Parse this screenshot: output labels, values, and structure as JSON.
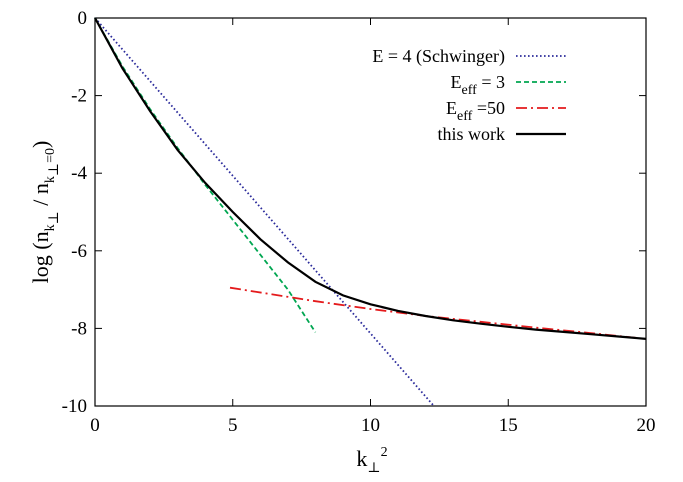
{
  "chart_data": {
    "type": "line",
    "xlabel": {
      "main": "k",
      "sub": "⊥",
      "sup": "2"
    },
    "ylabel": {
      "prefix": "log (n",
      "sub1": "k",
      "subsub1": "⊥",
      "mid": " / n",
      "sub2": "k",
      "subsub2": "⊥",
      "sub2tail": "=0",
      "suffix": ")"
    },
    "xlim": [
      0,
      20
    ],
    "ylim": [
      -10,
      0
    ],
    "xticks": [
      0,
      5,
      10,
      15,
      20
    ],
    "yticks": [
      0,
      -2,
      -4,
      -6,
      -8,
      -10
    ],
    "grid": false,
    "legend_position": "top-right",
    "series": [
      {
        "legend": {
          "main": "E = 4 (Schwinger)",
          "sub": "",
          "tail": ""
        },
        "color": "#2b2b9b",
        "style": "dotted",
        "x": [
          0,
          12.3
        ],
        "y": [
          0,
          -10.0
        ]
      },
      {
        "legend": {
          "main": "E",
          "sub": "eff",
          "tail": " = 3"
        },
        "color": "#00a651",
        "style": "dashed",
        "x": [
          0,
          1,
          2,
          3,
          4,
          5,
          6,
          7,
          8
        ],
        "y": [
          0,
          -1.25,
          -2.35,
          -3.35,
          -4.3,
          -5.2,
          -6.1,
          -7.0,
          -8.1
        ]
      },
      {
        "legend": {
          "main": "E",
          "sub": "eff",
          "tail": " =50"
        },
        "color": "#e41a1c",
        "style": "dashdot",
        "x": [
          4.9,
          8,
          10,
          12,
          14,
          16,
          18,
          20
        ],
        "y": [
          -6.95,
          -7.3,
          -7.5,
          -7.68,
          -7.83,
          -7.98,
          -8.12,
          -8.27
        ]
      },
      {
        "legend": {
          "main": "this work",
          "sub": "",
          "tail": ""
        },
        "color": "#000000",
        "style": "solid",
        "x": [
          0,
          1,
          2,
          3,
          4,
          5,
          6,
          7,
          8,
          9,
          10,
          11,
          12,
          13,
          14,
          15,
          16,
          17,
          18,
          19,
          20
        ],
        "y": [
          0,
          -1.3,
          -2.4,
          -3.4,
          -4.25,
          -5.0,
          -5.7,
          -6.3,
          -6.8,
          -7.15,
          -7.38,
          -7.55,
          -7.68,
          -7.79,
          -7.88,
          -7.96,
          -8.03,
          -8.09,
          -8.15,
          -8.21,
          -8.27
        ]
      }
    ]
  }
}
